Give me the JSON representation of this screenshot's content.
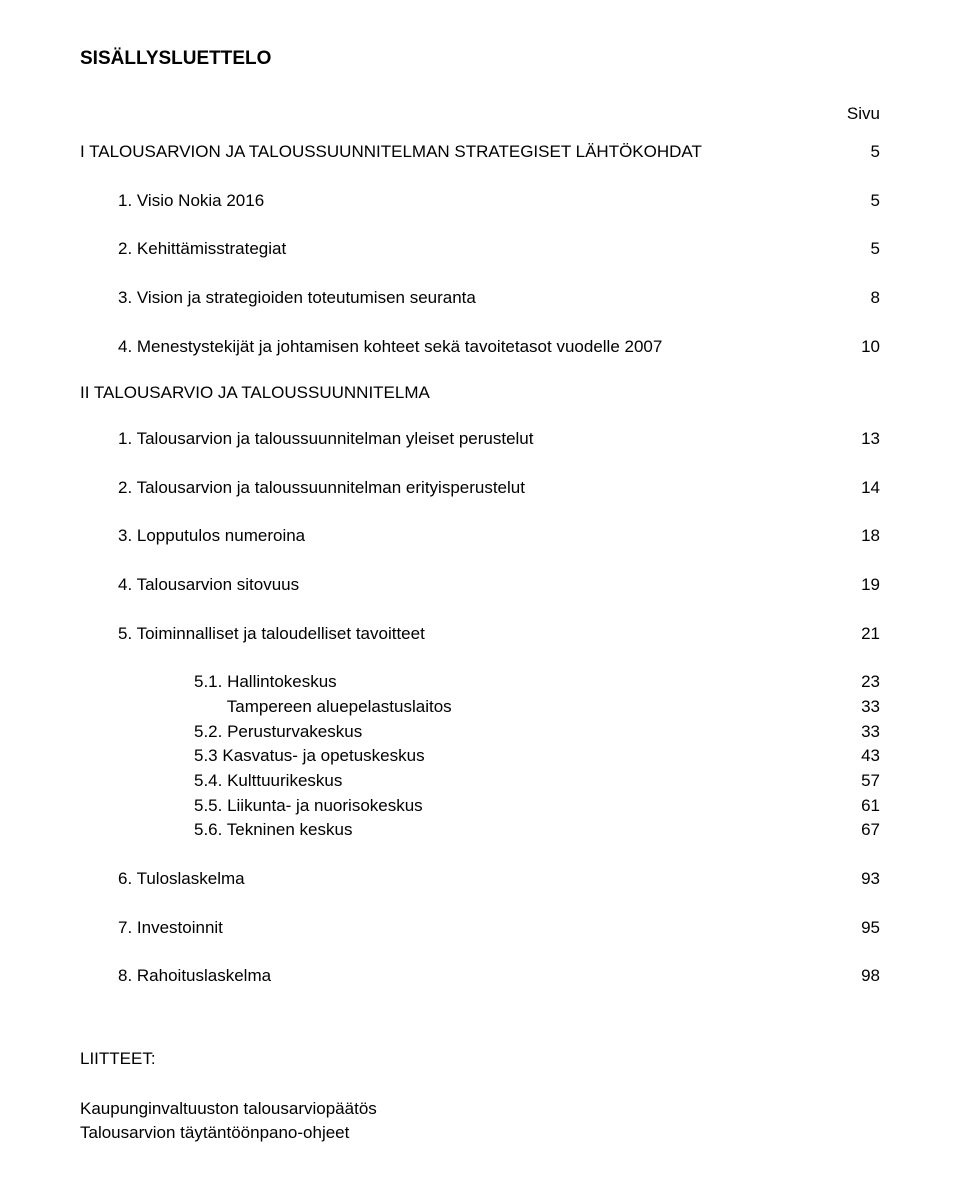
{
  "doc_title": "SISÄLLYSLUETTELO",
  "page_label": "Sivu",
  "section_I": {
    "heading": "I  TALOUSARVION JA TALOUSSUUNNITELMAN STRATEGISET LÄHTÖKOHDAT",
    "page": "5",
    "items": [
      {
        "label": "1. Visio Nokia 2016",
        "page": "5"
      },
      {
        "label": "2. Kehittämisstrategiat",
        "page": "5"
      },
      {
        "label": "3. Vision ja strategioiden toteutumisen seuranta",
        "page": "8"
      },
      {
        "label": "4. Menestystekijät ja johtamisen kohteet sekä tavoitetasot vuodelle 2007",
        "page": "10"
      }
    ]
  },
  "section_II": {
    "heading": "II  TALOUSARVIO  JA TALOUSSUUNNITELMA",
    "items": [
      {
        "label": "1. Talousarvion ja taloussuunnitelman yleiset perustelut",
        "page": "13"
      },
      {
        "label": "2. Talousarvion ja taloussuunnitelman erityisperustelut",
        "page": "14"
      },
      {
        "label": "3. Lopputulos numeroina",
        "page": "18"
      },
      {
        "label": "4. Talousarvion sitovuus",
        "page": "19"
      },
      {
        "label": "5. Toiminnalliset ja taloudelliset tavoitteet",
        "page": "21"
      }
    ],
    "sub5": [
      {
        "label": "5.1. Hallintokeskus",
        "page": "23"
      },
      {
        "label": "       Tampereen aluepelastuslaitos",
        "page": "33"
      },
      {
        "label": "5.2. Perusturvakeskus",
        "page": "33"
      },
      {
        "label": "5.3  Kasvatus- ja opetuskeskus",
        "page": "43"
      },
      {
        "label": "5.4. Kulttuurikeskus",
        "page": "57"
      },
      {
        "label": "5.5. Liikunta- ja nuorisokeskus",
        "page": "61"
      },
      {
        "label": "5.6. Tekninen keskus",
        "page": "67"
      }
    ],
    "tail": [
      {
        "label": "6. Tuloslaskelma",
        "page": "93"
      },
      {
        "label": "7. Investoinnit",
        "page": "95"
      },
      {
        "label": "8. Rahoituslaskelma",
        "page": "98"
      }
    ]
  },
  "attachments": {
    "title": "LIITTEET:",
    "items": [
      "Kaupunginvaltuuston talousarviopäätös",
      "Talousarvion täytäntöönpano-ohjeet"
    ]
  }
}
